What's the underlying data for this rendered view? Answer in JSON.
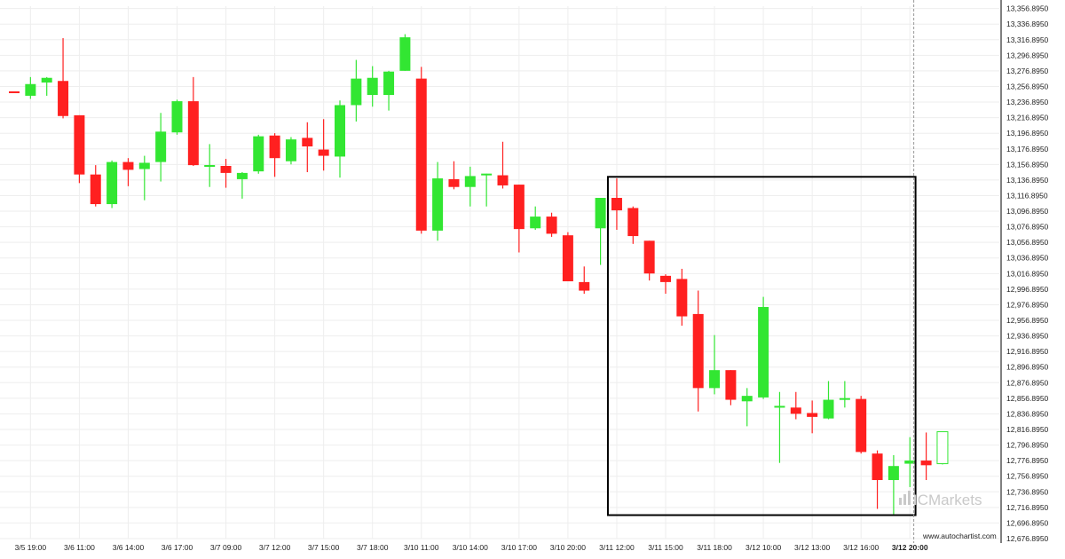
{
  "chart_data": {
    "type": "candlestick",
    "colors": {
      "up": "#32e632",
      "down": "#ff2020",
      "frame": "#000000",
      "grid": "#eeeeee",
      "current_line": "#999999"
    },
    "y_axis": {
      "ylim": [
        12676.895,
        13359.895
      ],
      "ticks": [
        "13,356.8950",
        "13,336.8950",
        "13,316.8950",
        "13,296.8950",
        "13,276.8950",
        "13,256.8950",
        "13,236.8950",
        "13,216.8950",
        "13,196.8950",
        "13,176.8950",
        "13,156.8950",
        "13,136.8950",
        "13,116.8950",
        "13,096.8950",
        "13,076.8950",
        "13,056.8950",
        "13,036.8950",
        "13,016.8950",
        "12,996.8950",
        "12,976.8950",
        "12,956.8950",
        "12,936.8950",
        "12,916.8950",
        "12,896.8950",
        "12,876.8950",
        "12,856.8950",
        "12,836.8950",
        "12,816.8950",
        "12,796.8950",
        "12,776.8950",
        "12,756.8950",
        "12,736.8950",
        "12,716.8950",
        "12,696.8950",
        "12,676.8950"
      ],
      "tick_values": [
        13356.895,
        13336.895,
        13316.895,
        13296.895,
        13276.895,
        13256.895,
        13236.895,
        13216.895,
        13196.895,
        13176.895,
        13156.895,
        13136.895,
        13116.895,
        13096.895,
        13076.895,
        13056.895,
        13036.895,
        13016.895,
        12996.895,
        12976.895,
        12956.895,
        12936.895,
        12916.895,
        12896.895,
        12876.895,
        12856.895,
        12836.895,
        12816.895,
        12796.895,
        12776.895,
        12756.895,
        12736.895,
        12716.895,
        12696.895,
        12676.895
      ]
    },
    "x_axis": {
      "labels": [
        {
          "text": "3/5 19:00",
          "index": 1
        },
        {
          "text": "3/6 11:00",
          "index": 4
        },
        {
          "text": "3/6 14:00",
          "index": 7
        },
        {
          "text": "3/6 17:00",
          "index": 10
        },
        {
          "text": "3/7 09:00",
          "index": 13
        },
        {
          "text": "3/7 12:00",
          "index": 16
        },
        {
          "text": "3/7 15:00",
          "index": 19
        },
        {
          "text": "3/7 18:00",
          "index": 22
        },
        {
          "text": "3/10 11:00",
          "index": 25
        },
        {
          "text": "3/10 14:00",
          "index": 28
        },
        {
          "text": "3/10 17:00",
          "index": 31
        },
        {
          "text": "3/10 20:00",
          "index": 34
        },
        {
          "text": "3/11 12:00",
          "index": 37
        },
        {
          "text": "3/11 15:00",
          "index": 40
        },
        {
          "text": "3/11 18:00",
          "index": 43
        },
        {
          "text": "3/12 10:00",
          "index": 46
        },
        {
          "text": "3/12 13:00",
          "index": 49
        },
        {
          "text": "3/12 16:00",
          "index": 52
        },
        {
          "text": "3/12 20:00",
          "index": 55,
          "bold": true
        }
      ]
    },
    "candles": [
      {
        "o": 13250,
        "h": 13250,
        "l": 13249,
        "c": 13249
      },
      {
        "o": 13245,
        "h": 13269,
        "l": 13241,
        "c": 13260
      },
      {
        "o": 13262,
        "h": 13269,
        "l": 13245,
        "c": 13268
      },
      {
        "o": 13264,
        "h": 13319,
        "l": 13216,
        "c": 13219
      },
      {
        "o": 13220,
        "h": 13220,
        "l": 13133,
        "c": 13144
      },
      {
        "o": 13144,
        "h": 13156,
        "l": 13103,
        "c": 13106
      },
      {
        "o": 13106,
        "h": 13162,
        "l": 13101,
        "c": 13160
      },
      {
        "o": 13160,
        "h": 13165,
        "l": 13129,
        "c": 13150
      },
      {
        "o": 13151,
        "h": 13168,
        "l": 13111,
        "c": 13159
      },
      {
        "o": 13160,
        "h": 13223,
        "l": 13135,
        "c": 13199
      },
      {
        "o": 13198,
        "h": 13240,
        "l": 13195,
        "c": 13238
      },
      {
        "o": 13238,
        "h": 13269,
        "l": 13155,
        "c": 13156
      },
      {
        "o": 13155,
        "h": 13183,
        "l": 13128,
        "c": 13155
      },
      {
        "o": 13155,
        "h": 13164,
        "l": 13127,
        "c": 13146
      },
      {
        "o": 13138,
        "h": 13147,
        "l": 13113,
        "c": 13146
      },
      {
        "o": 13148,
        "h": 13195,
        "l": 13145,
        "c": 13193
      },
      {
        "o": 13194,
        "h": 13197,
        "l": 13141,
        "c": 13165
      },
      {
        "o": 13161,
        "h": 13192,
        "l": 13157,
        "c": 13189
      },
      {
        "o": 13191,
        "h": 13211,
        "l": 13147,
        "c": 13180
      },
      {
        "o": 13176,
        "h": 13215,
        "l": 13149,
        "c": 13168
      },
      {
        "o": 13167,
        "h": 13239,
        "l": 13140,
        "c": 13233
      },
      {
        "o": 13233,
        "h": 13291,
        "l": 13212,
        "c": 13267
      },
      {
        "o": 13246,
        "h": 13283,
        "l": 13231,
        "c": 13268
      },
      {
        "o": 13246,
        "h": 13277,
        "l": 13226,
        "c": 13276
      },
      {
        "o": 13277,
        "h": 13324,
        "l": 13277,
        "c": 13320
      },
      {
        "o": 13267,
        "h": 13282,
        "l": 13068,
        "c": 13072
      },
      {
        "o": 13072,
        "h": 13160,
        "l": 13059,
        "c": 13139
      },
      {
        "o": 13138,
        "h": 13161,
        "l": 13125,
        "c": 13128
      },
      {
        "o": 13128,
        "h": 13154,
        "l": 13103,
        "c": 13142
      },
      {
        "o": 13144,
        "h": 13145,
        "l": 13103,
        "c": 13144
      },
      {
        "o": 13143,
        "h": 13186,
        "l": 13126,
        "c": 13130
      },
      {
        "o": 13131,
        "h": 13131,
        "l": 13044,
        "c": 13074
      },
      {
        "o": 13075,
        "h": 13103,
        "l": 13073,
        "c": 13090
      },
      {
        "o": 13090,
        "h": 13095,
        "l": 13064,
        "c": 13068
      },
      {
        "o": 13066,
        "h": 13070,
        "l": 13007,
        "c": 13007
      },
      {
        "o": 13006,
        "h": 13026,
        "l": 12991,
        "c": 12995
      },
      {
        "o": 13075,
        "h": 13114,
        "l": 13028,
        "c": 13114
      },
      {
        "o": 13114,
        "h": 13139,
        "l": 13073,
        "c": 13098
      },
      {
        "o": 13101,
        "h": 13103,
        "l": 13055,
        "c": 13065
      },
      {
        "o": 13059,
        "h": 13059,
        "l": 13008,
        "c": 13017
      },
      {
        "o": 13014,
        "h": 13016,
        "l": 12991,
        "c": 13006
      },
      {
        "o": 13010,
        "h": 13023,
        "l": 12950,
        "c": 12962
      },
      {
        "o": 12965,
        "h": 12995,
        "l": 12840,
        "c": 12870
      },
      {
        "o": 12870,
        "h": 12938,
        "l": 12862,
        "c": 12893
      },
      {
        "o": 12893,
        "h": 12893,
        "l": 12848,
        "c": 12855
      },
      {
        "o": 12853,
        "h": 12870,
        "l": 12821,
        "c": 12860
      },
      {
        "o": 12858,
        "h": 12987,
        "l": 12856,
        "c": 12974
      },
      {
        "o": 12846,
        "h": 12865,
        "l": 12774,
        "c": 12846
      },
      {
        "o": 12845,
        "h": 12865,
        "l": 12830,
        "c": 12837
      },
      {
        "o": 12838,
        "h": 12854,
        "l": 12812,
        "c": 12833
      },
      {
        "o": 12831,
        "h": 12879,
        "l": 12830,
        "c": 12855
      },
      {
        "o": 12856,
        "h": 12879,
        "l": 12845,
        "c": 12856
      },
      {
        "o": 12856,
        "h": 12860,
        "l": 12786,
        "c": 12788
      },
      {
        "o": 12786,
        "h": 12790,
        "l": 12715,
        "c": 12752
      },
      {
        "o": 12752,
        "h": 12784,
        "l": 12708,
        "c": 12770
      },
      {
        "o": 12773,
        "h": 12807,
        "l": 12743,
        "c": 12777
      },
      {
        "o": 12777,
        "h": 12813,
        "l": 12752,
        "c": 12771
      },
      {
        "o": 12773,
        "h": 12814,
        "l": 12772,
        "c": 12814,
        "hollow": true
      }
    ],
    "highlight_box": {
      "from_index": 37,
      "to_index": 56,
      "high": 13141,
      "low": 12707
    },
    "current_time_index": 56
  },
  "watermark": {
    "brand": "ICMarkets",
    "site": "www.autochartist.com"
  }
}
